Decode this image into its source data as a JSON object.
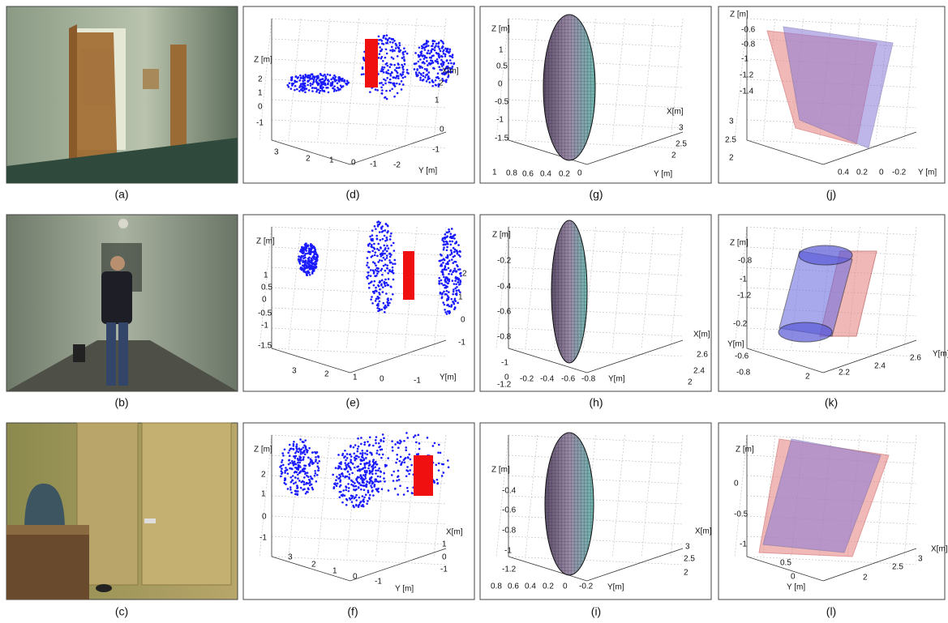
{
  "panels": [
    {
      "caption": "(a)"
    },
    {
      "caption": "(b)"
    },
    {
      "caption": "(c)"
    },
    {
      "caption": "(d)",
      "labels": [
        "Z [m]",
        "2",
        "1",
        "0",
        "-1",
        "3",
        "2",
        "1",
        "0",
        "-1",
        "-2",
        "Y [m]",
        "X[m]",
        "2",
        "1",
        "0",
        "-1"
      ]
    },
    {
      "caption": "(e)",
      "labels": [
        "Z [m]",
        "1",
        "0.5",
        "0",
        "-0.5",
        "-1",
        "-1.5",
        "3",
        "2",
        "1",
        "0",
        "-1",
        "Y[m]",
        "2",
        "1",
        "0",
        "-1"
      ]
    },
    {
      "caption": "(f)",
      "labels": [
        "Z [m]",
        "2",
        "1",
        "0",
        "-1",
        "3",
        "2",
        "1",
        "0",
        "-1",
        "Y [m]",
        "X[m]",
        "1",
        "0",
        "-1"
      ]
    },
    {
      "caption": "(g)",
      "labels": [
        "Z [m]",
        "1",
        "0.5",
        "0",
        "-0.5",
        "-1",
        "-1.5",
        "1",
        "0.8",
        "0.6",
        "0.4",
        "0.2",
        "0",
        "X[m]",
        "3",
        "2.5",
        "2",
        "Y [m]"
      ]
    },
    {
      "caption": "(h)",
      "labels": [
        "Z [m]",
        "-0.2",
        "-0.4",
        "-0.6",
        "-0.8",
        "-1",
        "-1.2",
        "0",
        "-0.2",
        "-0.4",
        "-0.6",
        "-0.8",
        "Y[m]",
        "X[m]",
        "2.6",
        "2.4",
        "2"
      ]
    },
    {
      "caption": "(i)",
      "labels": [
        "Z [m]",
        "-0.4",
        "-0.6",
        "-0.8",
        "-1",
        "-1.2",
        "0.8",
        "0.6",
        "0.4",
        "0.2",
        "0",
        "-0.2",
        "Y[m]",
        "X[m]",
        "3",
        "2.5",
        "2"
      ]
    },
    {
      "caption": "(j)",
      "labels": [
        "Z [m]",
        "-0.6",
        "-0.8",
        "-1",
        "-1.2",
        "-1.4",
        "3",
        "2.5",
        "2",
        "0.4",
        "0.2",
        "0",
        "-0.2",
        "Y [m]"
      ]
    },
    {
      "caption": "(k)",
      "labels": [
        "Z [m]",
        "-0.8",
        "-1",
        "-1.2",
        "-0.2",
        "Y[m]",
        "-0.6",
        "-0.8",
        "2",
        "2.2",
        "2.4",
        "2.6",
        "Y[m]"
      ]
    },
    {
      "caption": "(l)",
      "labels": [
        "Z [m]",
        "0",
        "-0.5",
        "-1",
        "0.5",
        "0",
        "Y [m]",
        "2",
        "2.5",
        "3",
        "X[m]"
      ]
    }
  ]
}
